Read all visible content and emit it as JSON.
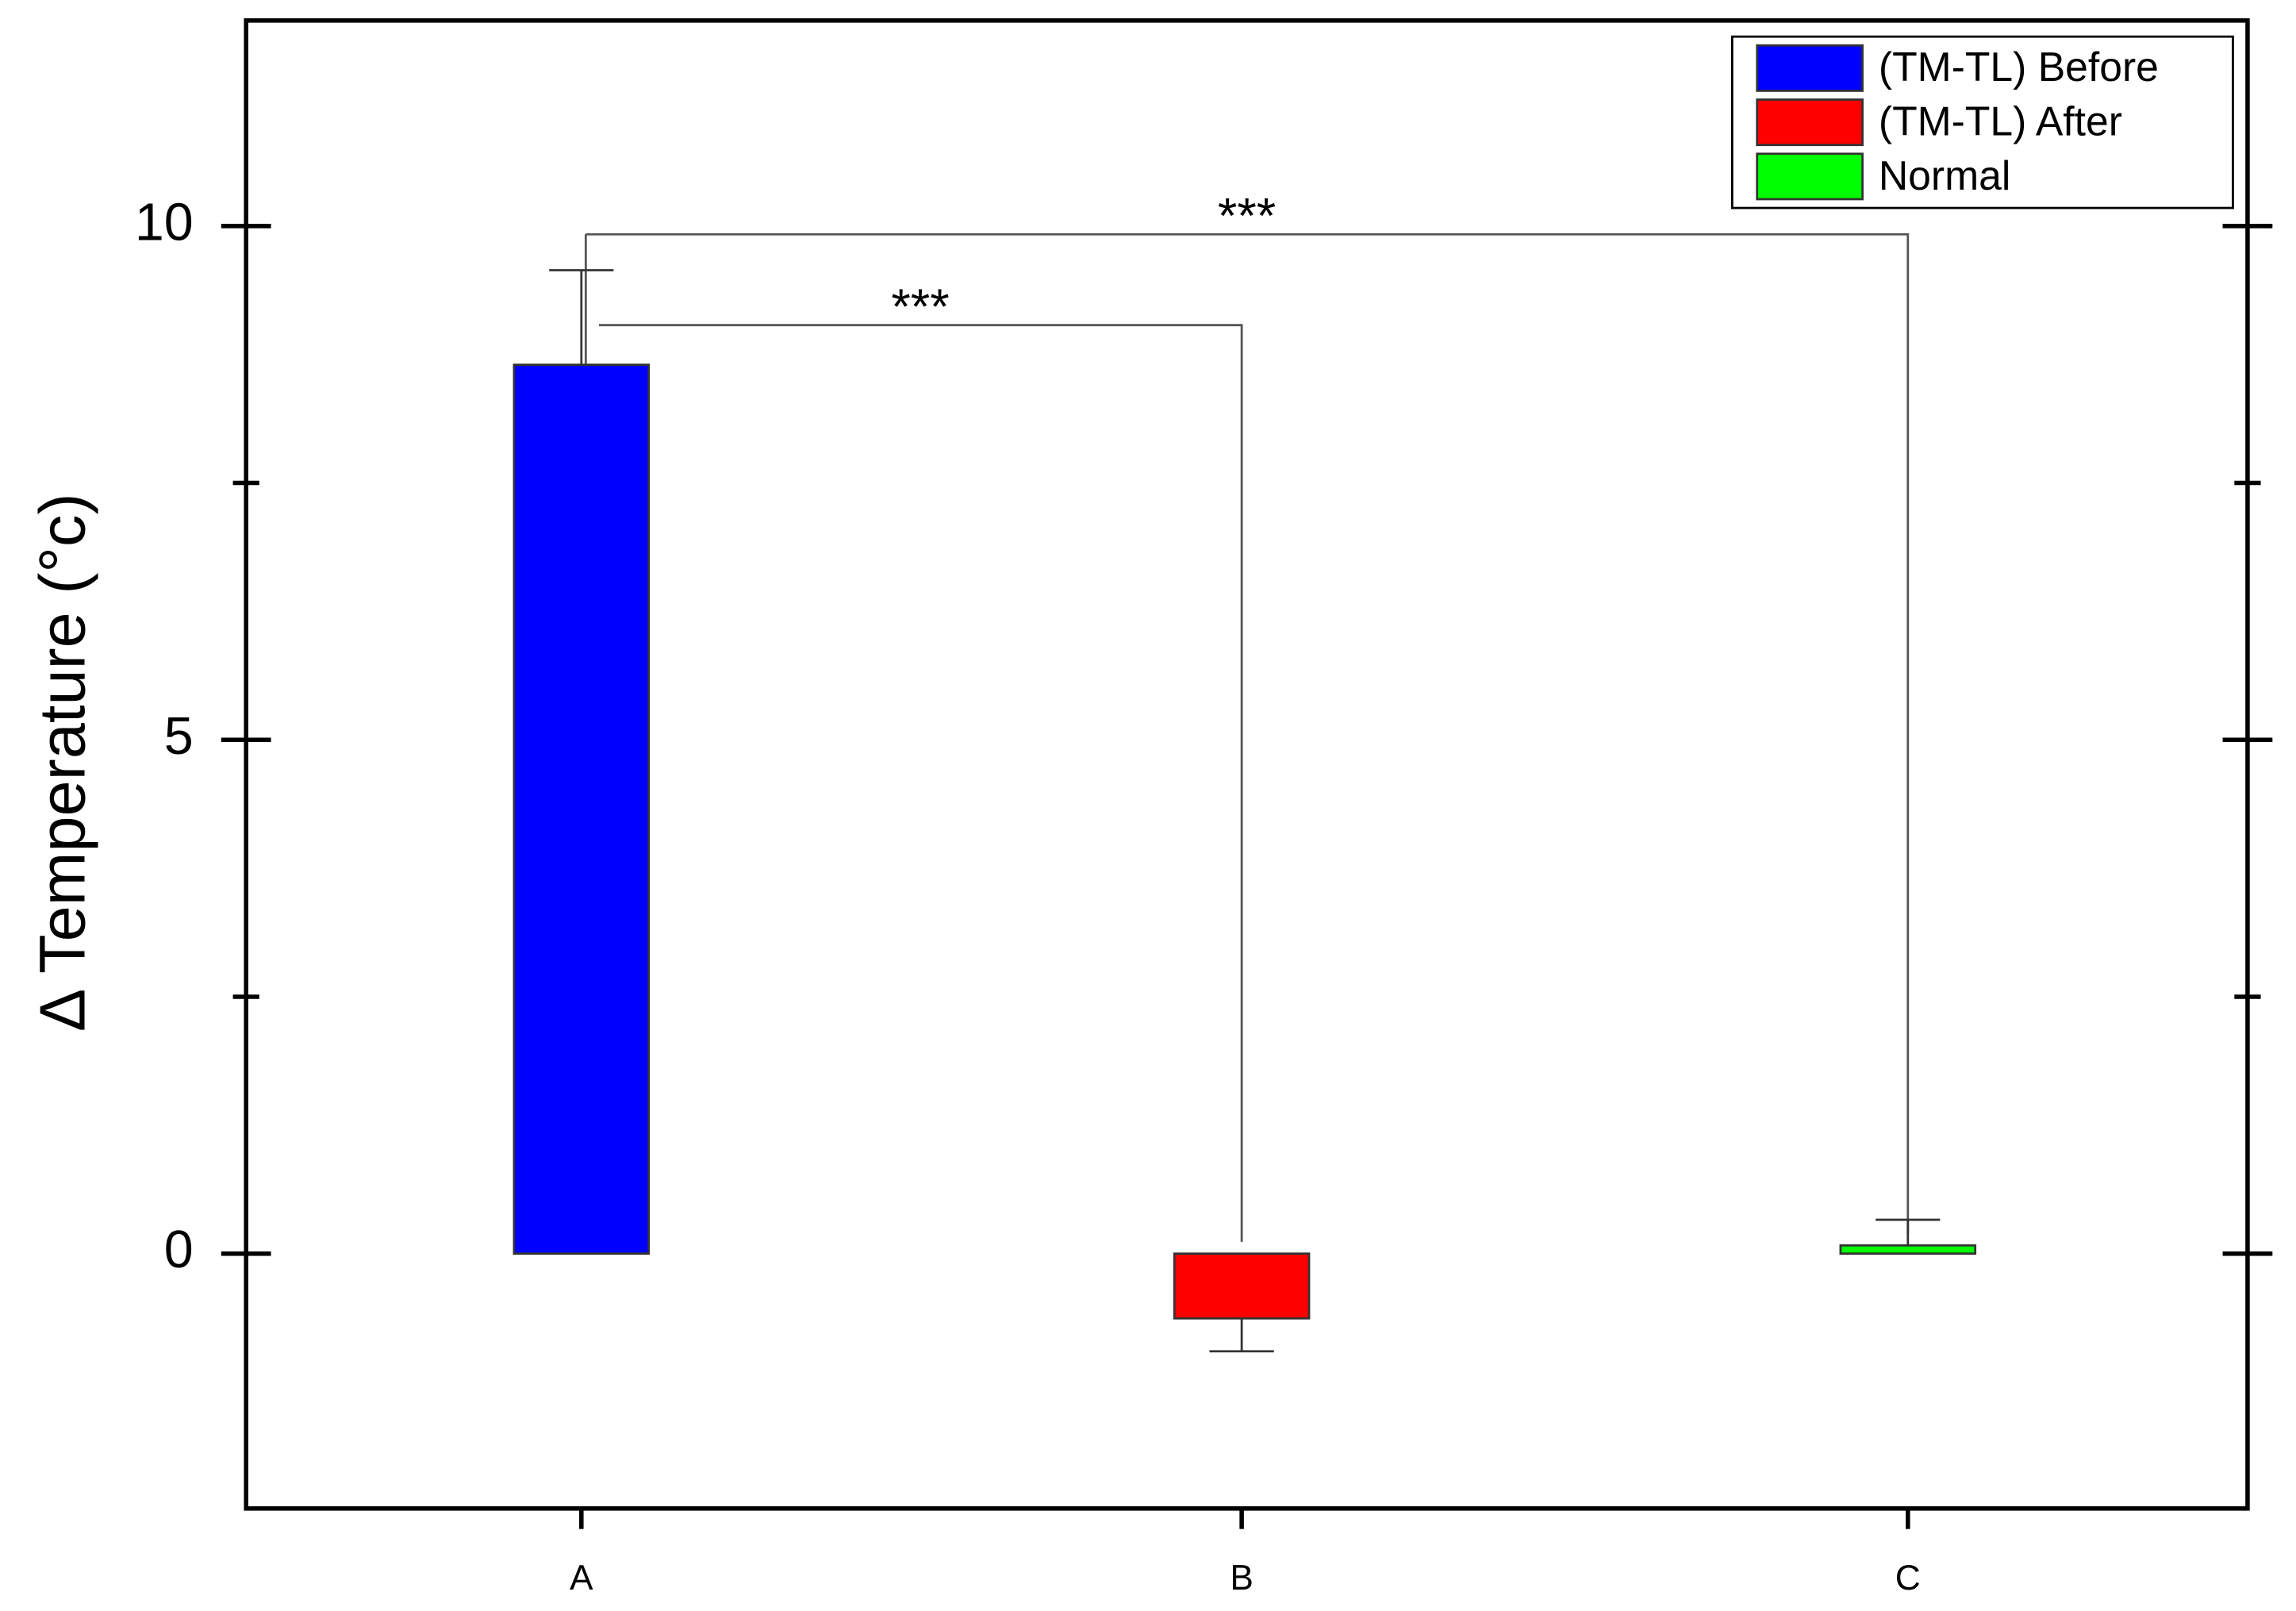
{
  "chart_data": {
    "type": "bar",
    "y_label": "∆ Temperature (°c)",
    "categories": [
      "A",
      "B",
      "C"
    ],
    "series": [
      {
        "name": "(TM-TL) Before",
        "color": "#0000ff",
        "values": [
          8.65,
          null,
          null
        ],
        "errors": [
          0.92,
          null,
          null
        ]
      },
      {
        "name": "(TM-TL) After",
        "color": "#ff0000",
        "values": [
          null,
          -0.63,
          null
        ],
        "errors": [
          null,
          0.32,
          null
        ]
      },
      {
        "name": "Normal",
        "color": "#00ff00",
        "values": [
          null,
          null,
          0.08
        ],
        "errors": [
          null,
          null,
          0.25
        ]
      }
    ],
    "ylim": [
      -2.48,
      12
    ],
    "yticks": [
      0,
      5,
      10
    ],
    "yminorticks": [
      2.5,
      7.5
    ],
    "legend": "top-right",
    "significance": [
      {
        "between": [
          "A",
          "B"
        ],
        "label": "***"
      },
      {
        "between": [
          "A",
          "C"
        ],
        "label": "***"
      }
    ]
  }
}
